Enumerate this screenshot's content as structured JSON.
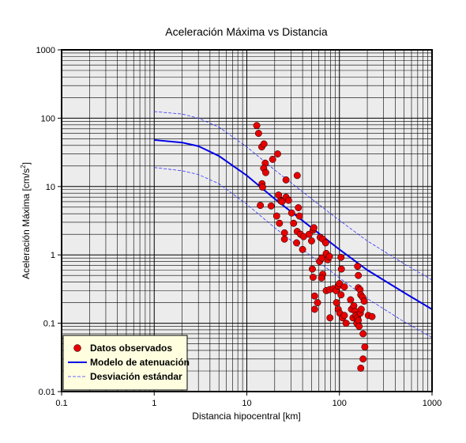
{
  "chart_data": {
    "type": "scatter",
    "title": "Aceleración Máxima vs Distancia",
    "xlabel": "Distancia hipocentral [km]",
    "ylabel_main": "Aceleración Máxima [cm/s",
    "ylabel_sup": "2",
    "ylabel_end": "]",
    "x_scale": "log",
    "y_scale": "log",
    "xlim": [
      0.1,
      1000
    ],
    "ylim": [
      0.01,
      1000
    ],
    "x_ticks": [
      0.1,
      1,
      10,
      100,
      1000
    ],
    "x_tick_labels": [
      "0.1",
      "1",
      "10",
      "100",
      "1000"
    ],
    "y_ticks": [
      0.01,
      0.1,
      1,
      10,
      100,
      1000
    ],
    "y_tick_labels": [
      "0.01",
      "0.1",
      "1",
      "10",
      "100",
      "1000"
    ],
    "grid": true,
    "legend_position": "bottom-left",
    "colors": {
      "points": "#e60000",
      "model": "#0000e6",
      "deviation": "#3333ff",
      "plot_background": "#ececec",
      "legend_background": "#ffffe0"
    },
    "series": [
      {
        "name": "Datos observados",
        "kind": "points",
        "points": [
          [
            12.8,
            78
          ],
          [
            13.4,
            60
          ],
          [
            14.5,
            38
          ],
          [
            15.3,
            42
          ],
          [
            15.8,
            22
          ],
          [
            15.2,
            18.5
          ],
          [
            16.0,
            16
          ],
          [
            14.6,
            11
          ],
          [
            14.8,
            9.8
          ],
          [
            19.0,
            25
          ],
          [
            21.5,
            30
          ],
          [
            26.5,
            12.5
          ],
          [
            35.0,
            14.5
          ],
          [
            14.0,
            5.3
          ],
          [
            18.3,
            5.2
          ],
          [
            22.0,
            7.5
          ],
          [
            23.2,
            6.2
          ],
          [
            24.0,
            6.0
          ],
          [
            26.5,
            7.0
          ],
          [
            28.2,
            6.3
          ],
          [
            30.5,
            4.1
          ],
          [
            36.0,
            4.9
          ],
          [
            37.0,
            3.7
          ],
          [
            21.0,
            3.7
          ],
          [
            22.5,
            2.9
          ],
          [
            25.5,
            2.1
          ],
          [
            32.0,
            2.9
          ],
          [
            35.0,
            2.2
          ],
          [
            38.0,
            2.0
          ],
          [
            41.0,
            1.85
          ],
          [
            47.0,
            2.0
          ],
          [
            52.0,
            2.3
          ],
          [
            53.0,
            2.5
          ],
          [
            25.5,
            1.7
          ],
          [
            34.5,
            1.5
          ],
          [
            40.0,
            1.2
          ],
          [
            50.0,
            1.6
          ],
          [
            51.0,
            0.62
          ],
          [
            62.0,
            1.8
          ],
          [
            66.0,
            1.7
          ],
          [
            71.0,
            1.5
          ],
          [
            72.0,
            1.05
          ],
          [
            75.0,
            0.85
          ],
          [
            61.0,
            0.8
          ],
          [
            64.5,
            0.9
          ],
          [
            78.0,
            0.95
          ],
          [
            104.0,
            0.92
          ],
          [
            105.0,
            0.62
          ],
          [
            66.0,
            0.52
          ],
          [
            64.0,
            0.46
          ],
          [
            52.0,
            0.47
          ],
          [
            72.0,
            0.3
          ],
          [
            78.0,
            0.31
          ],
          [
            86.0,
            0.32
          ],
          [
            92.0,
            0.3
          ],
          [
            97.0,
            0.35
          ],
          [
            100.0,
            0.38
          ],
          [
            104.0,
            0.26
          ],
          [
            113.0,
            0.34
          ],
          [
            157.0,
            0.68
          ],
          [
            160.0,
            0.5
          ],
          [
            160.0,
            0.33
          ],
          [
            167.0,
            0.31
          ],
          [
            170.0,
            0.26
          ],
          [
            54.0,
            0.25
          ],
          [
            58.0,
            0.2
          ],
          [
            54.0,
            0.16
          ],
          [
            79.0,
            0.12
          ],
          [
            93.0,
            0.2
          ],
          [
            97.0,
            0.16
          ],
          [
            101.0,
            0.14
          ],
          [
            108.0,
            0.12
          ],
          [
            113.0,
            0.13
          ],
          [
            118.0,
            0.1
          ],
          [
            132.0,
            0.22
          ],
          [
            135.0,
            0.16
          ],
          [
            140.0,
            0.12
          ],
          [
            143.0,
            0.18
          ],
          [
            148.0,
            0.15
          ],
          [
            151.0,
            0.13
          ],
          [
            154.0,
            0.1
          ],
          [
            157.0,
            0.12
          ],
          [
            160.0,
            0.11
          ],
          [
            163.0,
            0.09
          ],
          [
            168.0,
            0.14
          ],
          [
            172.0,
            0.16
          ],
          [
            178.0,
            0.24
          ],
          [
            185.0,
            0.21
          ],
          [
            205.0,
            0.13
          ],
          [
            225.0,
            0.125
          ],
          [
            180.0,
            0.07
          ],
          [
            188.0,
            0.045
          ],
          [
            180.0,
            0.03
          ],
          [
            170.0,
            0.022
          ]
        ]
      },
      {
        "name": "Modelo de atenuación",
        "kind": "line",
        "points": [
          [
            1,
            48
          ],
          [
            2,
            44
          ],
          [
            3,
            39
          ],
          [
            5,
            28
          ],
          [
            10,
            14.5
          ],
          [
            20,
            6.6
          ],
          [
            50,
            2.5
          ],
          [
            100,
            1.2
          ],
          [
            200,
            0.6
          ],
          [
            500,
            0.28
          ],
          [
            1000,
            0.16
          ]
        ]
      },
      {
        "name": "Desviación estándar",
        "kind": "dashed",
        "curves": [
          [
            [
              1,
              125
            ],
            [
              2,
              115
            ],
            [
              3,
              100
            ],
            [
              5,
              74
            ],
            [
              10,
              38
            ],
            [
              20,
              17.5
            ],
            [
              50,
              6.6
            ],
            [
              100,
              3.2
            ],
            [
              200,
              1.6
            ],
            [
              500,
              0.74
            ],
            [
              1000,
              0.43
            ]
          ],
          [
            [
              1,
              19
            ],
            [
              2,
              17
            ],
            [
              3,
              15
            ],
            [
              5,
              11
            ],
            [
              10,
              5.5
            ],
            [
              20,
              2.5
            ],
            [
              50,
              0.95
            ],
            [
              100,
              0.46
            ],
            [
              200,
              0.23
            ],
            [
              500,
              0.105
            ],
            [
              1000,
              0.062
            ]
          ]
        ]
      }
    ]
  }
}
